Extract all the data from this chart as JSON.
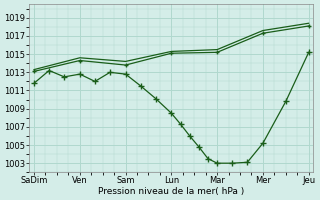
{
  "background_color": "#d4ede8",
  "grid_color": "#b0d8ce",
  "line_color": "#1a5e1a",
  "ylabel": "Pression niveau de la mer( hPa )",
  "ylim": [
    1002,
    1020.5
  ],
  "yticks": [
    1003,
    1005,
    1007,
    1009,
    1011,
    1013,
    1015,
    1017,
    1019
  ],
  "x_labels": [
    "SaDim",
    "Ven",
    "Sam",
    "Lun",
    "Mar",
    "Mer",
    "Jeu"
  ],
  "xlim": [
    -0.1,
    6.1
  ],
  "line_upper1_x": [
    0,
    1,
    2,
    3,
    4,
    5,
    6
  ],
  "line_upper1_y": [
    1013.1,
    1014.3,
    1013.8,
    1015.1,
    1015.2,
    1017.3,
    1018.1
  ],
  "line_upper2_x": [
    0,
    1,
    2,
    3,
    4,
    5,
    6
  ],
  "line_upper2_y": [
    1013.3,
    1014.6,
    1014.2,
    1015.3,
    1015.5,
    1017.6,
    1018.4
  ],
  "line_v_x": [
    0,
    0.33,
    0.66,
    1.0,
    1.33,
    1.66,
    2.0,
    2.33,
    2.66,
    3.0,
    3.2,
    3.4,
    3.6,
    3.8,
    4.0,
    4.33,
    4.66,
    5.0,
    5.5,
    6.0
  ],
  "line_v_y": [
    1011.8,
    1013.2,
    1012.5,
    1012.8,
    1012.0,
    1013.0,
    1012.8,
    1011.5,
    1010.1,
    1008.5,
    1007.3,
    1006.0,
    1004.8,
    1003.5,
    1003.0,
    1003.0,
    1003.1,
    1005.2,
    1009.8,
    1015.2
  ]
}
